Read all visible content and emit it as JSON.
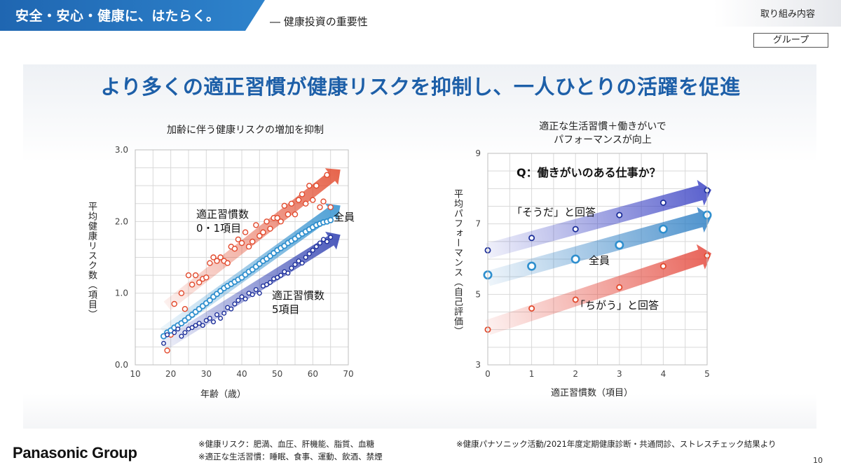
{
  "header": {
    "tagline": "安全・安心・健康に、はたらく。",
    "subtitle": "― 健康投資の重要性",
    "section": "取り組み内容",
    "group_label": "グループ"
  },
  "main_title": "より多くの適正習慣が健康リスクを抑制し、一人ひとりの活躍を促進",
  "left_chart": {
    "title": "加齢に伴う健康リスクの増加を抑制",
    "ylabel": "平均健康リスク数（項目）",
    "xlabel": "年齢（歳）",
    "label_high": [
      "適正習慣数",
      "0・1項目"
    ],
    "label_all": "全員",
    "label_low": [
      "適正習慣数",
      "5項目"
    ]
  },
  "right_chart": {
    "title": [
      "適正な生活習慣＋働きがいで",
      "パフォーマンスが向上"
    ],
    "question": "Q：働きがいのある仕事か？",
    "ylabel": "平均パフォーマンス（自己評価）",
    "xlabel": "適正習慣数（項目）",
    "label_yes": "「そうだ」と回答",
    "label_all": "全員",
    "label_no": "「ちがう」と回答"
  },
  "chart_data": [
    {
      "type": "scatter",
      "title": "加齢に伴う健康リスクの増加を抑制",
      "xlabel": "年齢（歳）",
      "ylabel": "平均健康リスク数（項目）",
      "xlim": [
        10,
        70
      ],
      "ylim": [
        0.0,
        3.0
      ],
      "xticks": [
        "10",
        "20",
        "30",
        "40",
        "50",
        "60",
        "70"
      ],
      "yticks": [
        "0.0",
        "1.0",
        "2.0",
        "3.0"
      ],
      "grid": true,
      "series": [
        {
          "name": "適正習慣数0・1項目",
          "color": "#e2492c",
          "x": [
            19,
            20,
            21,
            23,
            24,
            25,
            26,
            27,
            28,
            29,
            30,
            31,
            32,
            33,
            34,
            35,
            36,
            37,
            38,
            39,
            40,
            41,
            42,
            43,
            44,
            45,
            46,
            47,
            48,
            49,
            50,
            51,
            52,
            53,
            54,
            55,
            56,
            57,
            58,
            59,
            60,
            61,
            62,
            63,
            64,
            65
          ],
          "y": [
            0.2,
            0.42,
            0.85,
            1.0,
            0.78,
            1.25,
            1.12,
            1.25,
            1.15,
            1.2,
            1.22,
            1.42,
            1.5,
            1.45,
            1.5,
            1.45,
            1.42,
            1.65,
            1.62,
            1.75,
            1.7,
            1.85,
            1.65,
            1.72,
            1.95,
            1.8,
            1.85,
            2.0,
            1.9,
            2.05,
            2.05,
            2.0,
            2.22,
            2.1,
            2.25,
            2.1,
            2.3,
            2.38,
            2.25,
            2.5,
            2.3,
            2.5,
            2.2,
            2.28,
            2.65,
            2.2
          ]
        },
        {
          "name": "全員",
          "color": "#2f8fce",
          "x": [
            18,
            19,
            20,
            21,
            22,
            23,
            24,
            25,
            26,
            27,
            28,
            29,
            30,
            31,
            32,
            33,
            34,
            35,
            36,
            37,
            38,
            39,
            40,
            41,
            42,
            43,
            44,
            45,
            46,
            47,
            48,
            49,
            50,
            51,
            52,
            53,
            54,
            55,
            56,
            57,
            58,
            59,
            60,
            61,
            62,
            63,
            64,
            65
          ],
          "y": [
            0.4,
            0.45,
            0.48,
            0.52,
            0.55,
            0.58,
            0.62,
            0.66,
            0.7,
            0.74,
            0.78,
            0.82,
            0.86,
            0.9,
            0.95,
            0.99,
            1.03,
            1.07,
            1.1,
            1.13,
            1.16,
            1.19,
            1.22,
            1.26,
            1.3,
            1.33,
            1.37,
            1.41,
            1.45,
            1.48,
            1.52,
            1.56,
            1.6,
            1.63,
            1.66,
            1.7,
            1.73,
            1.76,
            1.8,
            1.83,
            1.86,
            1.89,
            1.92,
            1.95,
            1.97,
            1.99,
            2.0,
            2.02
          ]
        },
        {
          "name": "適正習慣数5項目",
          "color": "#1d2f9a",
          "x": [
            18,
            19,
            21,
            22,
            23,
            24,
            25,
            26,
            27,
            28,
            29,
            30,
            31,
            32,
            33,
            34,
            35,
            36,
            37,
            38,
            39,
            40,
            41,
            42,
            43,
            44,
            45,
            46,
            47,
            48,
            49,
            50,
            51,
            52,
            53,
            54,
            55,
            56,
            57,
            58,
            59,
            60,
            61,
            62,
            63,
            64,
            65
          ],
          "y": [
            0.3,
            0.42,
            0.45,
            0.5,
            0.4,
            0.45,
            0.5,
            0.52,
            0.55,
            0.58,
            0.55,
            0.62,
            0.65,
            0.6,
            0.7,
            0.65,
            0.72,
            0.8,
            0.78,
            0.85,
            0.9,
            0.95,
            0.92,
            1.0,
            0.98,
            1.05,
            1.0,
            1.1,
            1.12,
            1.15,
            1.2,
            1.22,
            1.25,
            1.3,
            1.28,
            1.35,
            1.4,
            1.45,
            1.42,
            1.5,
            1.55,
            1.6,
            1.65,
            1.7,
            1.75,
            1.72,
            1.78
          ]
        }
      ]
    },
    {
      "type": "scatter",
      "title": "適正な生活習慣＋働きがいで パフォーマンスが向上",
      "xlabel": "適正習慣数（項目）",
      "ylabel": "平均パフォーマンス（自己評価）",
      "xlim": [
        0,
        5
      ],
      "ylim": [
        3,
        9
      ],
      "xticks": [
        "0",
        "1",
        "2",
        "3",
        "4",
        "5"
      ],
      "yticks": [
        "3",
        "5",
        "7",
        "9"
      ],
      "grid": true,
      "series": [
        {
          "name": "「そうだ」と回答",
          "color": "#1d2f9a",
          "x": [
            0,
            1,
            2,
            3,
            4,
            5
          ],
          "y": [
            6.25,
            6.6,
            6.85,
            7.25,
            7.6,
            7.95
          ]
        },
        {
          "name": "全員",
          "color": "#2f8fce",
          "x": [
            0,
            1,
            2,
            3,
            4,
            5
          ],
          "y": [
            5.55,
            5.8,
            6.0,
            6.4,
            6.85,
            7.25
          ]
        },
        {
          "name": "「ちがう」と回答",
          "color": "#e2492c",
          "x": [
            0,
            1,
            2,
            3,
            4,
            5
          ],
          "y": [
            4.0,
            4.6,
            4.85,
            5.2,
            5.8,
            6.1
          ]
        }
      ]
    }
  ],
  "footer": {
    "brand": "Panasonic Group",
    "note1": "※健康リスク：肥満、血圧、肝機能、脂質、血糖",
    "note2": "※適正な生活習慣：睡眠、食事、運動、飲酒、禁煙",
    "source": "※健康パナソニック活動/2021年度定期健康診断・共通問診、ストレスチェック結果より",
    "page": "10"
  }
}
